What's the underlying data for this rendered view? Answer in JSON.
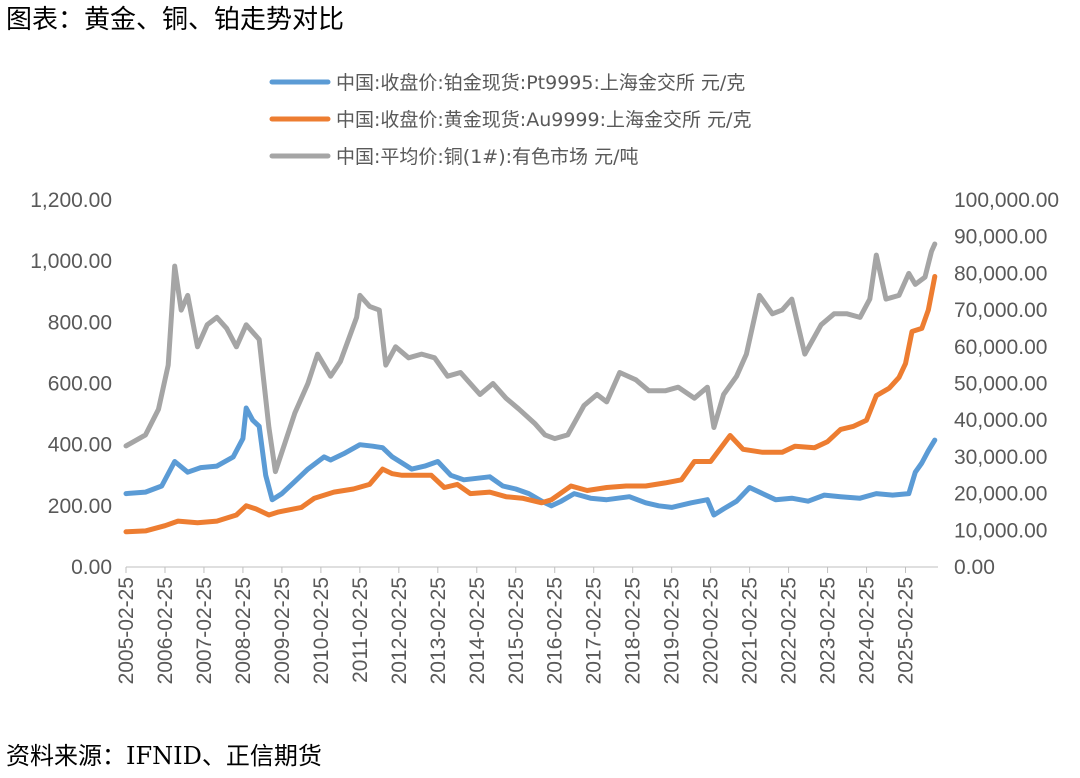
{
  "header": {
    "title": "图表：黄金、铜、铂走势对比"
  },
  "footer": {
    "source": "资料来源：IFNID、正信期货"
  },
  "chart_data": {
    "type": "line",
    "legend_position": "top",
    "grid": false,
    "left_axis": {
      "range": [
        0,
        1200
      ],
      "ticks": [
        "0.00",
        "200.00",
        "400.00",
        "600.00",
        "800.00",
        "1,000.00",
        "1,200.00"
      ]
    },
    "right_axis": {
      "range": [
        0,
        100000
      ],
      "ticks": [
        "0.00",
        "10,000.00",
        "20,000.00",
        "30,000.00",
        "40,000.00",
        "50,000.00",
        "60,000.00",
        "70,000.00",
        "80,000.00",
        "90,000.00",
        "100,000.00"
      ]
    },
    "x_ticks": [
      "2005-02-25",
      "2006-02-25",
      "2007-02-25",
      "2008-02-25",
      "2009-02-25",
      "2010-02-25",
      "2011-02-25",
      "2012-02-25",
      "2013-02-25",
      "2014-02-25",
      "2015-02-25",
      "2016-02-25",
      "2017-02-25",
      "2018-02-25",
      "2019-02-25",
      "2020-02-25",
      "2021-02-25",
      "2022-02-25",
      "2023-02-25",
      "2024-02-25",
      "2025-02-25"
    ],
    "series": [
      {
        "name": "中国:收盘价:铂金现货:Pt9995:上海金交所 元/克",
        "color": "#5B9BD5",
        "axis": "left",
        "points": [
          [
            "2005-02",
            240
          ],
          [
            "2005-08",
            245
          ],
          [
            "2006-01",
            265
          ],
          [
            "2006-05",
            345
          ],
          [
            "2006-09",
            310
          ],
          [
            "2007-01",
            325
          ],
          [
            "2007-06",
            330
          ],
          [
            "2007-11",
            360
          ],
          [
            "2008-02",
            420
          ],
          [
            "2008-03",
            520
          ],
          [
            "2008-05",
            480
          ],
          [
            "2008-07",
            460
          ],
          [
            "2008-09",
            300
          ],
          [
            "2008-11",
            220
          ],
          [
            "2009-02",
            240
          ],
          [
            "2009-06",
            280
          ],
          [
            "2009-10",
            320
          ],
          [
            "2010-03",
            360
          ],
          [
            "2010-05",
            350
          ],
          [
            "2010-09",
            370
          ],
          [
            "2011-02",
            400
          ],
          [
            "2011-06",
            395
          ],
          [
            "2011-09",
            390
          ],
          [
            "2011-12",
            360
          ],
          [
            "2012-03",
            340
          ],
          [
            "2012-06",
            320
          ],
          [
            "2012-10",
            330
          ],
          [
            "2013-02",
            345
          ],
          [
            "2013-06",
            300
          ],
          [
            "2013-10",
            285
          ],
          [
            "2014-02",
            290
          ],
          [
            "2014-06",
            295
          ],
          [
            "2014-10",
            265
          ],
          [
            "2015-02",
            255
          ],
          [
            "2015-06",
            240
          ],
          [
            "2015-10",
            215
          ],
          [
            "2016-01",
            200
          ],
          [
            "2016-04",
            215
          ],
          [
            "2016-08",
            240
          ],
          [
            "2017-01",
            225
          ],
          [
            "2017-06",
            220
          ],
          [
            "2018-01",
            230
          ],
          [
            "2018-06",
            210
          ],
          [
            "2018-10",
            200
          ],
          [
            "2019-02",
            195
          ],
          [
            "2019-08",
            210
          ],
          [
            "2020-01",
            220
          ],
          [
            "2020-03",
            170
          ],
          [
            "2020-06",
            190
          ],
          [
            "2020-10",
            215
          ],
          [
            "2021-02",
            260
          ],
          [
            "2021-06",
            240
          ],
          [
            "2021-10",
            220
          ],
          [
            "2022-03",
            225
          ],
          [
            "2022-08",
            215
          ],
          [
            "2023-01",
            235
          ],
          [
            "2023-06",
            230
          ],
          [
            "2023-12",
            225
          ],
          [
            "2024-05",
            240
          ],
          [
            "2024-10",
            235
          ],
          [
            "2025-03",
            240
          ],
          [
            "2025-05",
            310
          ],
          [
            "2025-07",
            340
          ],
          [
            "2025-09",
            380
          ],
          [
            "2025-11",
            415
          ]
        ]
      },
      {
        "name": "中国:收盘价:黄金现货:Au9999:上海金交所 元/克",
        "color": "#ED7D31",
        "axis": "left",
        "points": [
          [
            "2005-02",
            115
          ],
          [
            "2005-08",
            118
          ],
          [
            "2006-02",
            135
          ],
          [
            "2006-06",
            150
          ],
          [
            "2006-12",
            145
          ],
          [
            "2007-06",
            150
          ],
          [
            "2007-12",
            170
          ],
          [
            "2008-03",
            200
          ],
          [
            "2008-06",
            190
          ],
          [
            "2008-10",
            170
          ],
          [
            "2009-01",
            180
          ],
          [
            "2009-08",
            195
          ],
          [
            "2009-12",
            225
          ],
          [
            "2010-06",
            245
          ],
          [
            "2010-12",
            255
          ],
          [
            "2011-05",
            270
          ],
          [
            "2011-09",
            320
          ],
          [
            "2011-12",
            305
          ],
          [
            "2012-03",
            300
          ],
          [
            "2012-08",
            300
          ],
          [
            "2012-12",
            300
          ],
          [
            "2013-04",
            260
          ],
          [
            "2013-08",
            270
          ],
          [
            "2013-12",
            240
          ],
          [
            "2014-06",
            245
          ],
          [
            "2014-11",
            230
          ],
          [
            "2015-04",
            225
          ],
          [
            "2015-10",
            210
          ],
          [
            "2016-01",
            220
          ],
          [
            "2016-07",
            265
          ],
          [
            "2016-12",
            250
          ],
          [
            "2017-06",
            260
          ],
          [
            "2017-12",
            265
          ],
          [
            "2018-06",
            265
          ],
          [
            "2018-12",
            275
          ],
          [
            "2019-05",
            285
          ],
          [
            "2019-09",
            345
          ],
          [
            "2020-02",
            345
          ],
          [
            "2020-08",
            430
          ],
          [
            "2020-12",
            385
          ],
          [
            "2021-06",
            375
          ],
          [
            "2021-12",
            375
          ],
          [
            "2022-04",
            395
          ],
          [
            "2022-10",
            390
          ],
          [
            "2023-02",
            410
          ],
          [
            "2023-06",
            450
          ],
          [
            "2023-10",
            460
          ],
          [
            "2024-02",
            480
          ],
          [
            "2024-05",
            560
          ],
          [
            "2024-09",
            585
          ],
          [
            "2024-12",
            620
          ],
          [
            "2025-02",
            665
          ],
          [
            "2025-04",
            770
          ],
          [
            "2025-07",
            780
          ],
          [
            "2025-09",
            840
          ],
          [
            "2025-11",
            950
          ]
        ]
      },
      {
        "name": "中国:平均价:铜(1#):有色市场 元/吨",
        "color": "#A5A5A5",
        "axis": "right",
        "points": [
          [
            "2005-02",
            33000
          ],
          [
            "2005-08",
            36000
          ],
          [
            "2005-12",
            43000
          ],
          [
            "2006-03",
            55000
          ],
          [
            "2006-05",
            82000
          ],
          [
            "2006-07",
            70000
          ],
          [
            "2006-09",
            74000
          ],
          [
            "2006-12",
            60000
          ],
          [
            "2007-03",
            66000
          ],
          [
            "2007-06",
            68000
          ],
          [
            "2007-09",
            65000
          ],
          [
            "2007-12",
            60000
          ],
          [
            "2008-03",
            66000
          ],
          [
            "2008-07",
            62000
          ],
          [
            "2008-10",
            38000
          ],
          [
            "2008-12",
            26000
          ],
          [
            "2009-03",
            34000
          ],
          [
            "2009-06",
            42000
          ],
          [
            "2009-10",
            50000
          ],
          [
            "2010-01",
            58000
          ],
          [
            "2010-05",
            52000
          ],
          [
            "2010-08",
            56000
          ],
          [
            "2011-01",
            68000
          ],
          [
            "2011-02",
            74000
          ],
          [
            "2011-05",
            71000
          ],
          [
            "2011-08",
            70000
          ],
          [
            "2011-10",
            55000
          ],
          [
            "2012-01",
            60000
          ],
          [
            "2012-05",
            57000
          ],
          [
            "2012-09",
            58000
          ],
          [
            "2013-01",
            57000
          ],
          [
            "2013-05",
            52000
          ],
          [
            "2013-09",
            53000
          ],
          [
            "2014-03",
            47000
          ],
          [
            "2014-07",
            50000
          ],
          [
            "2014-11",
            46000
          ],
          [
            "2015-03",
            43000
          ],
          [
            "2015-08",
            39000
          ],
          [
            "2015-11",
            36000
          ],
          [
            "2016-02",
            35000
          ],
          [
            "2016-06",
            36000
          ],
          [
            "2016-11",
            44000
          ],
          [
            "2017-03",
            47000
          ],
          [
            "2017-06",
            45000
          ],
          [
            "2017-10",
            53000
          ],
          [
            "2018-03",
            51000
          ],
          [
            "2018-07",
            48000
          ],
          [
            "2018-12",
            48000
          ],
          [
            "2019-04",
            49000
          ],
          [
            "2019-09",
            46000
          ],
          [
            "2020-01",
            49000
          ],
          [
            "2020-03",
            38000
          ],
          [
            "2020-06",
            47000
          ],
          [
            "2020-10",
            52000
          ],
          [
            "2021-01",
            58000
          ],
          [
            "2021-05",
            74000
          ],
          [
            "2021-09",
            69000
          ],
          [
            "2021-12",
            70000
          ],
          [
            "2022-03",
            73000
          ],
          [
            "2022-07",
            58000
          ],
          [
            "2022-12",
            66000
          ],
          [
            "2023-04",
            69000
          ],
          [
            "2023-08",
            69000
          ],
          [
            "2023-12",
            68000
          ],
          [
            "2024-03",
            73000
          ],
          [
            "2024-05",
            85000
          ],
          [
            "2024-08",
            73000
          ],
          [
            "2024-12",
            74000
          ],
          [
            "2025-03",
            80000
          ],
          [
            "2025-05",
            77000
          ],
          [
            "2025-08",
            79000
          ],
          [
            "2025-10",
            86000
          ],
          [
            "2025-11",
            88000
          ]
        ]
      }
    ]
  }
}
